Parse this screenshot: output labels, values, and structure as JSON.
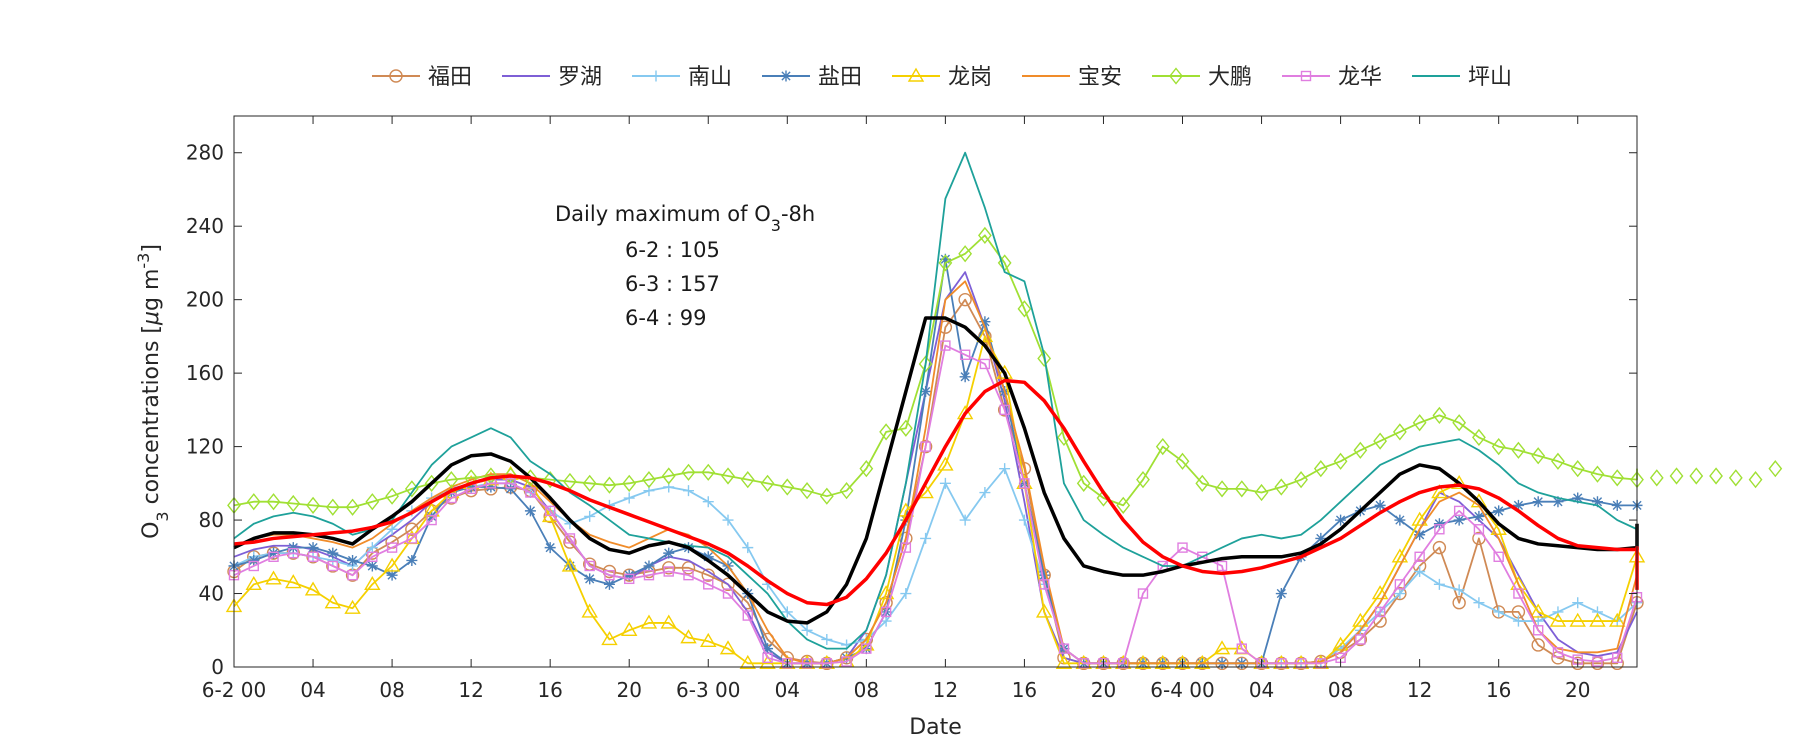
{
  "chart_data": {
    "type": "line",
    "title": "",
    "xlabel": "Date",
    "ylabel": "O3 concentrations [μg m-3]",
    "ylabel_parts": {
      "pre": "O",
      "sub": "3",
      "mid": " concentrations [",
      "mu": "μ",
      "g": "g m",
      "sup": "-3",
      "end": "]"
    },
    "ylim": [
      0,
      300
    ],
    "xlim": [
      0,
      71
    ],
    "y_ticks": [
      0,
      40,
      80,
      120,
      160,
      200,
      240,
      280
    ],
    "x_ticks": [
      {
        "x": 0,
        "label": "6-2 00"
      },
      {
        "x": 4,
        "label": "04"
      },
      {
        "x": 8,
        "label": "08"
      },
      {
        "x": 12,
        "label": "12"
      },
      {
        "x": 16,
        "label": "16"
      },
      {
        "x": 20,
        "label": "20"
      },
      {
        "x": 24,
        "label": "6-3 00"
      },
      {
        "x": 28,
        "label": "04"
      },
      {
        "x": 32,
        "label": "08"
      },
      {
        "x": 36,
        "label": "12"
      },
      {
        "x": 40,
        "label": "16"
      },
      {
        "x": 44,
        "label": "20"
      },
      {
        "x": 48,
        "label": "6-4 00"
      },
      {
        "x": 52,
        "label": "04"
      },
      {
        "x": 56,
        "label": "08"
      },
      {
        "x": 60,
        "label": "12"
      },
      {
        "x": 64,
        "label": "16"
      },
      {
        "x": 68,
        "label": "20"
      }
    ],
    "grid": false,
    "legend_position": "top",
    "annotation": {
      "title_parts": {
        "pre": "Daily maximum of O",
        "sub": "3",
        "post": "-8h"
      },
      "lines": [
        "6-2 : 105",
        "6-3 : 157",
        "6-4 : 99"
      ]
    },
    "series": [
      {
        "name": "福田",
        "color": "#d08a55",
        "marker": "circle",
        "values": [
          52,
          60,
          62,
          62,
          60,
          55,
          50,
          62,
          68,
          75,
          85,
          92,
          96,
          97,
          98,
          96,
          82,
          68,
          56,
          52,
          50,
          52,
          54,
          54,
          50,
          45,
          35,
          15,
          5,
          3,
          2,
          5,
          15,
          35,
          70,
          120,
          185,
          200,
          180,
          140,
          108,
          50,
          5,
          2,
          2,
          2,
          2,
          2,
          2,
          2,
          2,
          2,
          2,
          2,
          2,
          3,
          8,
          15,
          25,
          40,
          55,
          65,
          35,
          70,
          30,
          30,
          12,
          5,
          2,
          2,
          2,
          35
        ]
      },
      {
        "name": "罗湖",
        "color": "#7e5fd6",
        "marker": "none",
        "values": [
          60,
          64,
          66,
          66,
          64,
          60,
          55,
          65,
          72,
          80,
          90,
          97,
          100,
          102,
          102,
          98,
          85,
          70,
          55,
          50,
          48,
          55,
          60,
          58,
          52,
          45,
          30,
          8,
          2,
          2,
          2,
          5,
          20,
          50,
          100,
          150,
          200,
          215,
          185,
          145,
          90,
          30,
          5,
          2,
          2,
          2,
          2,
          2,
          2,
          2,
          2,
          2,
          2,
          2,
          2,
          3,
          8,
          20,
          35,
          55,
          75,
          95,
          90,
          80,
          70,
          50,
          30,
          15,
          8,
          6,
          8,
          30
        ]
      },
      {
        "name": "南山",
        "color": "#86c9f0",
        "marker": "plus",
        "values": [
          55,
          60,
          62,
          62,
          60,
          58,
          55,
          65,
          75,
          85,
          92,
          96,
          98,
          100,
          100,
          95,
          85,
          78,
          82,
          88,
          92,
          96,
          98,
          96,
          90,
          80,
          65,
          45,
          30,
          20,
          15,
          12,
          15,
          25,
          40,
          70,
          100,
          80,
          95,
          108,
          80,
          45,
          10,
          2,
          2,
          2,
          2,
          2,
          2,
          2,
          2,
          2,
          2,
          2,
          2,
          3,
          10,
          20,
          30,
          40,
          52,
          45,
          42,
          35,
          30,
          25,
          25,
          30,
          35,
          30,
          25,
          35
        ]
      },
      {
        "name": "盐田",
        "color": "#4a7fb8",
        "marker": "asterisk",
        "values": [
          55,
          58,
          62,
          65,
          65,
          62,
          58,
          55,
          50,
          58,
          82,
          95,
          98,
          98,
          97,
          85,
          65,
          55,
          48,
          45,
          50,
          55,
          62,
          65,
          60,
          55,
          40,
          10,
          2,
          2,
          2,
          5,
          10,
          30,
          80,
          150,
          222,
          158,
          188,
          150,
          100,
          50,
          10,
          2,
          2,
          2,
          2,
          2,
          2,
          2,
          2,
          2,
          2,
          40,
          60,
          70,
          80,
          85,
          88,
          80,
          72,
          78,
          80,
          82,
          85,
          88,
          90,
          90,
          92,
          90,
          88,
          88
        ]
      },
      {
        "name": "龙岗",
        "color": "#f5d000",
        "marker": "triangle",
        "values": [
          33,
          45,
          48,
          46,
          42,
          35,
          32,
          45,
          55,
          70,
          85,
          95,
          100,
          102,
          105,
          100,
          82,
          55,
          30,
          15,
          20,
          24,
          24,
          16,
          14,
          10,
          2,
          2,
          2,
          2,
          2,
          3,
          12,
          40,
          85,
          95,
          110,
          138,
          180,
          160,
          100,
          30,
          2,
          2,
          2,
          2,
          2,
          2,
          2,
          2,
          10,
          10,
          2,
          2,
          2,
          2,
          12,
          25,
          40,
          60,
          80,
          95,
          100,
          90,
          75,
          45,
          30,
          25,
          25,
          25,
          25,
          60
        ]
      },
      {
        "name": "宝安",
        "color": "#f08c2a",
        "marker": "none",
        "values": [
          65,
          70,
          72,
          72,
          70,
          68,
          65,
          70,
          78,
          85,
          92,
          98,
          102,
          105,
          105,
          100,
          90,
          80,
          72,
          68,
          65,
          70,
          75,
          72,
          65,
          55,
          40,
          20,
          5,
          2,
          2,
          5,
          15,
          35,
          70,
          130,
          200,
          210,
          185,
          150,
          110,
          55,
          10,
          2,
          2,
          2,
          2,
          2,
          2,
          2,
          2,
          2,
          2,
          2,
          2,
          3,
          8,
          20,
          35,
          55,
          75,
          90,
          95,
          88,
          70,
          45,
          20,
          10,
          8,
          8,
          10,
          50
        ]
      },
      {
        "name": "大鹏",
        "color": "#a0e034",
        "marker": "diamond",
        "values": [
          88,
          90,
          90,
          89,
          88,
          87,
          87,
          90,
          93,
          97,
          100,
          102,
          103,
          104,
          104,
          103,
          102,
          101,
          100,
          99,
          100,
          102,
          104,
          106,
          106,
          104,
          102,
          100,
          98,
          96,
          93,
          96,
          108,
          128,
          130,
          165,
          220,
          225,
          235,
          220,
          195,
          168,
          125,
          100,
          92,
          88,
          102,
          120,
          112,
          100,
          97,
          97,
          95,
          98,
          102,
          108,
          112,
          118,
          123,
          128,
          133,
          137,
          133,
          125,
          120,
          118,
          115,
          112,
          108,
          105,
          103,
          102,
          103,
          104,
          104,
          104,
          103,
          102,
          108
        ]
      },
      {
        "name": "龙华",
        "color": "#e07ee0",
        "marker": "square",
        "values": [
          50,
          55,
          60,
          62,
          60,
          55,
          50,
          60,
          65,
          70,
          80,
          92,
          97,
          100,
          100,
          95,
          85,
          70,
          55,
          50,
          48,
          50,
          52,
          50,
          45,
          40,
          28,
          5,
          2,
          2,
          2,
          3,
          10,
          30,
          65,
          120,
          175,
          170,
          165,
          140,
          100,
          45,
          10,
          2,
          2,
          2,
          40,
          55,
          65,
          60,
          55,
          10,
          2,
          2,
          2,
          2,
          5,
          15,
          30,
          45,
          60,
          75,
          85,
          75,
          60,
          40,
          20,
          8,
          4,
          3,
          5,
          38
        ]
      },
      {
        "name": "坪山",
        "color": "#1ea19a",
        "marker": "none",
        "values": [
          70,
          78,
          82,
          84,
          82,
          78,
          72,
          75,
          80,
          95,
          110,
          120,
          125,
          130,
          125,
          112,
          105,
          95,
          88,
          80,
          72,
          70,
          68,
          66,
          65,
          60,
          50,
          40,
          25,
          15,
          10,
          10,
          20,
          50,
          100,
          165,
          255,
          280,
          250,
          215,
          210,
          170,
          100,
          80,
          72,
          65,
          60,
          55,
          55,
          60,
          65,
          70,
          72,
          70,
          72,
          80,
          90,
          100,
          110,
          115,
          120,
          122,
          124,
          118,
          110,
          100,
          95,
          92,
          90,
          88,
          80,
          75
        ]
      },
      {
        "name": "",
        "color": "#000000",
        "marker": "none",
        "width": 3.5,
        "values": [
          65,
          70,
          73,
          73,
          72,
          70,
          67,
          75,
          82,
          90,
          100,
          110,
          115,
          116,
          112,
          103,
          92,
          80,
          70,
          64,
          62,
          66,
          68,
          65,
          58,
          50,
          40,
          30,
          25,
          24,
          30,
          45,
          70,
          110,
          150,
          190,
          190,
          185,
          175,
          160,
          130,
          95,
          70,
          55,
          52,
          50,
          50,
          52,
          55,
          57,
          59,
          60,
          60,
          60,
          62,
          67,
          75,
          85,
          95,
          105,
          110,
          108,
          100,
          90,
          78,
          70,
          67,
          66,
          65,
          64,
          64,
          65,
          66,
          65,
          64,
          78
        ]
      },
      {
        "name": "",
        "color": "#ff0000",
        "marker": "none",
        "width": 3.5,
        "values": [
          67,
          68,
          70,
          71,
          72,
          73,
          74,
          76,
          79,
          84,
          90,
          96,
          100,
          103,
          104,
          103,
          100,
          96,
          91,
          87,
          83,
          79,
          75,
          71,
          67,
          62,
          55,
          47,
          40,
          35,
          34,
          38,
          48,
          62,
          80,
          100,
          120,
          138,
          150,
          156,
          155,
          145,
          130,
          112,
          95,
          80,
          68,
          60,
          55,
          52,
          51,
          52,
          54,
          57,
          60,
          65,
          70,
          77,
          84,
          90,
          95,
          98,
          99,
          97,
          92,
          85,
          77,
          70,
          66,
          65,
          64,
          64,
          63,
          64,
          65,
          64,
          60,
          42
        ]
      }
    ]
  }
}
